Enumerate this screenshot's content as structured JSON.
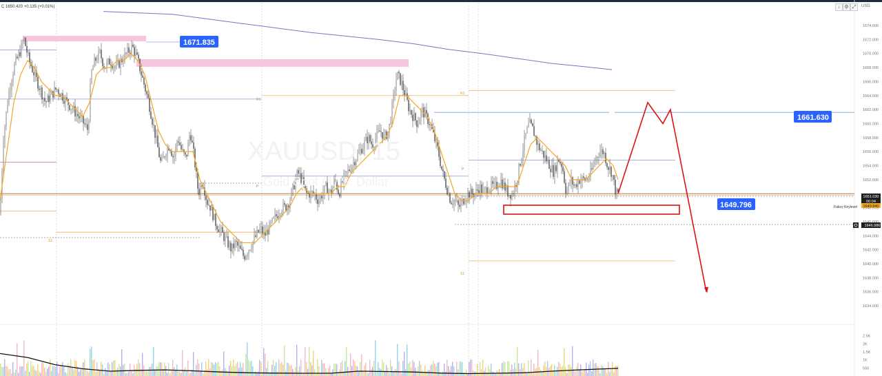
{
  "header": {
    "ohlc_text": "C 1650.420 +0.135 (+0.01%)",
    "currency": "USD"
  },
  "toolbar": {
    "icons": [
      "download-icon",
      "settings-icon",
      "fullscreen-icon"
    ]
  },
  "watermark": {
    "symbol": "XAUUSD, 15",
    "name": "Gold Spot / U.S. Dollar"
  },
  "price_axis": {
    "ticks": [
      "1674.000",
      "1672.000",
      "1670.000",
      "1668.000",
      "1666.000",
      "1664.000",
      "1662.000",
      "1660.000",
      "1658.000",
      "1656.000",
      "1654.000",
      "1652.000",
      "1648.000",
      "1646.000",
      "1644.000",
      "1642.000",
      "1640.000",
      "1638.000",
      "1636.000",
      "1634.000"
    ],
    "last_price": "1651.030",
    "countdown": "00:04",
    "fakey_price": "1649.840",
    "low_marker": "1646.986"
  },
  "volume_axis": {
    "ticks": [
      "2.5K",
      "2K",
      "1.5K",
      "1K",
      "500"
    ]
  },
  "annotations": {
    "label_high": "1671.835",
    "label_mid": "1661.630",
    "label_low": "1649.796",
    "fakey_text": "Fakey Keylevel"
  },
  "pivots": {
    "r1_a": "R1",
    "p_a": "P",
    "s1_a": "S1",
    "r1_b": "R1",
    "p_b": "P",
    "s1_b": "S1"
  },
  "colors": {
    "candle": "#555555",
    "ema": "#f5a623",
    "sma": "#7a73c7",
    "red": "#dd1111",
    "label_bg": "#2962ff",
    "pink_zone": "#f7c6dc",
    "pivot": "#f0b060"
  },
  "chart_data": {
    "type": "candlestick",
    "symbol": "XAUUSD",
    "ylim": [
      1633,
      1676
    ],
    "price_path": [
      [
        0,
        1647
      ],
      [
        5,
        1658
      ],
      [
        12,
        1664
      ],
      [
        20,
        1668
      ],
      [
        28,
        1670
      ],
      [
        35,
        1672
      ],
      [
        42,
        1669
      ],
      [
        50,
        1667
      ],
      [
        58,
        1665
      ],
      [
        66,
        1663
      ],
      [
        74,
        1664
      ],
      [
        82,
        1665
      ],
      [
        90,
        1664
      ],
      [
        98,
        1663
      ],
      [
        106,
        1662
      ],
      [
        114,
        1661
      ],
      [
        122,
        1660
      ],
      [
        128,
        1659
      ],
      [
        132,
        1667
      ],
      [
        138,
        1669
      ],
      [
        145,
        1670
      ],
      [
        152,
        1668
      ],
      [
        160,
        1669
      ],
      [
        168,
        1668
      ],
      [
        176,
        1669
      ],
      [
        184,
        1670
      ],
      [
        192,
        1671
      ],
      [
        200,
        1669
      ],
      [
        208,
        1666
      ],
      [
        216,
        1663
      ],
      [
        222,
        1660
      ],
      [
        228,
        1657
      ],
      [
        234,
        1654
      ],
      [
        240,
        1656
      ],
      [
        246,
        1657
      ],
      [
        252,
        1655
      ],
      [
        258,
        1658
      ],
      [
        264,
        1656
      ],
      [
        270,
        1655
      ],
      [
        276,
        1659
      ],
      [
        282,
        1655
      ],
      [
        288,
        1650
      ],
      [
        294,
        1652
      ],
      [
        300,
        1649
      ],
      [
        306,
        1648
      ],
      [
        312,
        1646
      ],
      [
        318,
        1645
      ],
      [
        324,
        1644
      ],
      [
        330,
        1643
      ],
      [
        336,
        1642
      ],
      [
        342,
        1643
      ],
      [
        348,
        1642
      ],
      [
        354,
        1641
      ],
      [
        360,
        1642
      ],
      [
        366,
        1643
      ],
      [
        372,
        1644
      ],
      [
        378,
        1645
      ],
      [
        384,
        1644
      ],
      [
        390,
        1645
      ],
      [
        396,
        1646
      ],
      [
        402,
        1647
      ],
      [
        408,
        1648
      ],
      [
        414,
        1648
      ],
      [
        420,
        1649
      ],
      [
        426,
        1651
      ],
      [
        432,
        1653
      ],
      [
        438,
        1652
      ],
      [
        444,
        1650
      ],
      [
        450,
        1650
      ],
      [
        456,
        1650
      ],
      [
        462,
        1649
      ],
      [
        468,
        1650
      ],
      [
        474,
        1651
      ],
      [
        480,
        1650
      ],
      [
        486,
        1652
      ],
      [
        492,
        1650
      ],
      [
        498,
        1652
      ],
      [
        504,
        1653
      ],
      [
        510,
        1654
      ],
      [
        516,
        1655
      ],
      [
        522,
        1656
      ],
      [
        528,
        1657
      ],
      [
        534,
        1658
      ],
      [
        540,
        1657
      ],
      [
        546,
        1658
      ],
      [
        552,
        1659
      ],
      [
        558,
        1658
      ],
      [
        564,
        1659
      ],
      [
        570,
        1663
      ],
      [
        576,
        1667
      ],
      [
        582,
        1666
      ],
      [
        588,
        1664
      ],
      [
        594,
        1662
      ],
      [
        600,
        1661
      ],
      [
        606,
        1660
      ],
      [
        612,
        1662
      ],
      [
        618,
        1661
      ],
      [
        624,
        1660
      ],
      [
        630,
        1658
      ],
      [
        636,
        1656
      ],
      [
        642,
        1653
      ],
      [
        648,
        1651
      ],
      [
        654,
        1649
      ],
      [
        660,
        1649
      ],
      [
        666,
        1648
      ],
      [
        672,
        1649
      ],
      [
        678,
        1650
      ],
      [
        684,
        1650
      ],
      [
        690,
        1650
      ],
      [
        696,
        1651
      ],
      [
        702,
        1650
      ],
      [
        708,
        1651
      ],
      [
        714,
        1651
      ],
      [
        720,
        1651
      ],
      [
        726,
        1652
      ],
      [
        732,
        1651
      ],
      [
        738,
        1650
      ],
      [
        744,
        1650
      ],
      [
        750,
        1652
      ],
      [
        756,
        1655
      ],
      [
        762,
        1658
      ],
      [
        768,
        1660
      ],
      [
        774,
        1659
      ],
      [
        780,
        1657
      ],
      [
        786,
        1656
      ],
      [
        792,
        1655
      ],
      [
        798,
        1654
      ],
      [
        804,
        1653
      ],
      [
        810,
        1655
      ],
      [
        816,
        1654
      ],
      [
        822,
        1650
      ],
      [
        828,
        1652
      ],
      [
        834,
        1651
      ],
      [
        840,
        1652
      ],
      [
        846,
        1652
      ],
      [
        852,
        1652
      ],
      [
        858,
        1653
      ],
      [
        864,
        1655
      ],
      [
        870,
        1656
      ],
      [
        876,
        1656
      ],
      [
        882,
        1654
      ],
      [
        888,
        1653
      ],
      [
        894,
        1650
      ],
      [
        897,
        1650
      ]
    ],
    "forecast_path": [
      [
        897,
        1650
      ],
      [
        940,
        1663
      ],
      [
        962,
        1660
      ],
      [
        973,
        1662
      ],
      [
        1025,
        1636
      ]
    ],
    "ema": [
      [
        0,
        1649
      ],
      [
        10,
        1656
      ],
      [
        20,
        1663
      ],
      [
        30,
        1667
      ],
      [
        40,
        1669
      ],
      [
        50,
        1668
      ],
      [
        60,
        1666
      ],
      [
        70,
        1665
      ],
      [
        80,
        1664
      ],
      [
        90,
        1664
      ],
      [
        100,
        1663
      ],
      [
        110,
        1662
      ],
      [
        120,
        1661
      ],
      [
        130,
        1663
      ],
      [
        140,
        1667
      ],
      [
        150,
        1668
      ],
      [
        160,
        1668
      ],
      [
        170,
        1669
      ],
      [
        180,
        1669
      ],
      [
        190,
        1670
      ],
      [
        200,
        1669
      ],
      [
        210,
        1667
      ],
      [
        220,
        1663
      ],
      [
        230,
        1659
      ],
      [
        240,
        1657
      ],
      [
        250,
        1656
      ],
      [
        260,
        1656
      ],
      [
        270,
        1656
      ],
      [
        280,
        1656
      ],
      [
        290,
        1652
      ],
      [
        300,
        1650
      ],
      [
        310,
        1648
      ],
      [
        320,
        1646
      ],
      [
        330,
        1645
      ],
      [
        340,
        1644
      ],
      [
        350,
        1643
      ],
      [
        360,
        1643
      ],
      [
        370,
        1643
      ],
      [
        380,
        1644
      ],
      [
        390,
        1645
      ],
      [
        400,
        1646
      ],
      [
        410,
        1647
      ],
      [
        420,
        1648
      ],
      [
        430,
        1650
      ],
      [
        440,
        1651
      ],
      [
        450,
        1650
      ],
      [
        460,
        1650
      ],
      [
        470,
        1650
      ],
      [
        480,
        1650
      ],
      [
        490,
        1651
      ],
      [
        500,
        1651
      ],
      [
        510,
        1653
      ],
      [
        520,
        1654
      ],
      [
        530,
        1655
      ],
      [
        540,
        1656
      ],
      [
        550,
        1657
      ],
      [
        560,
        1658
      ],
      [
        570,
        1660
      ],
      [
        580,
        1664
      ],
      [
        590,
        1664
      ],
      [
        600,
        1663
      ],
      [
        610,
        1662
      ],
      [
        620,
        1661
      ],
      [
        630,
        1659
      ],
      [
        640,
        1656
      ],
      [
        650,
        1653
      ],
      [
        660,
        1650
      ],
      [
        670,
        1649
      ],
      [
        680,
        1649
      ],
      [
        690,
        1650
      ],
      [
        700,
        1650
      ],
      [
        710,
        1650
      ],
      [
        720,
        1651
      ],
      [
        730,
        1651
      ],
      [
        740,
        1651
      ],
      [
        750,
        1651
      ],
      [
        760,
        1654
      ],
      [
        770,
        1657
      ],
      [
        780,
        1658
      ],
      [
        790,
        1657
      ],
      [
        800,
        1656
      ],
      [
        810,
        1655
      ],
      [
        820,
        1654
      ],
      [
        830,
        1652
      ],
      [
        840,
        1652
      ],
      [
        850,
        1652
      ],
      [
        860,
        1653
      ],
      [
        870,
        1654
      ],
      [
        880,
        1655
      ],
      [
        890,
        1654
      ],
      [
        897,
        1652
      ]
    ],
    "sma": [
      [
        150,
        1676
      ],
      [
        250,
        1675.6
      ],
      [
        350,
        1674.3
      ],
      [
        450,
        1673
      ],
      [
        550,
        1672
      ],
      [
        600,
        1671.4
      ],
      [
        650,
        1670.6
      ],
      [
        700,
        1670
      ],
      [
        750,
        1669.3
      ],
      [
        800,
        1668.6
      ],
      [
        850,
        1668.1
      ],
      [
        888,
        1667.7
      ]
    ],
    "levels": [
      {
        "from": 0,
        "to": 82,
        "price": 1670.5,
        "color": "#7f9fd8"
      },
      {
        "from": 0,
        "to": 82,
        "price": 1663.5,
        "color": "#7f9fd8"
      },
      {
        "from": 0,
        "to": 82,
        "price": 1654.5,
        "color": "#d27fb8"
      },
      {
        "from": 0,
        "to": 82,
        "price": 1647.5,
        "color": "#f0b060"
      },
      {
        "from": 82,
        "to": 380,
        "price": 1663.5,
        "color": "#7f9fd8"
      },
      {
        "from": 82,
        "to": 380,
        "price": 1644.5,
        "color": "#f0b060"
      },
      {
        "from": 380,
        "to": 680,
        "price": 1664.0,
        "color": "#f0b060"
      },
      {
        "from": 380,
        "to": 680,
        "price": 1652.5,
        "color": "#7f9fd8"
      },
      {
        "from": 630,
        "to": 884,
        "price": 1661.6,
        "color": "#7f9fd8"
      },
      {
        "from": 892,
        "to": 1240,
        "price": 1661.6,
        "color": "#7f9fd8"
      },
      {
        "from": 680,
        "to": 980,
        "price": 1664.7,
        "color": "#f0b060"
      },
      {
        "from": 680,
        "to": 980,
        "price": 1654.8,
        "color": "#7f9fd8"
      },
      {
        "from": 680,
        "to": 980,
        "price": 1640.4,
        "color": "#f0b060"
      },
      {
        "from": 0,
        "to": 1240,
        "price": 1649.8,
        "color": "#f0b060"
      },
      {
        "from": 0,
        "to": 1240,
        "price": 1650.0,
        "color": "#8b6a52"
      }
    ],
    "volume": {
      "ylim": [
        0,
        3000
      ],
      "avg": [
        [
          0,
          1400
        ],
        [
          40,
          1150
        ],
        [
          80,
          700
        ],
        [
          120,
          450
        ],
        [
          160,
          300
        ],
        [
          200,
          350
        ],
        [
          240,
          380
        ],
        [
          280,
          320
        ],
        [
          320,
          250
        ],
        [
          360,
          200
        ],
        [
          400,
          180
        ],
        [
          440,
          170
        ],
        [
          480,
          170
        ],
        [
          520,
          300
        ],
        [
          560,
          280
        ],
        [
          600,
          250
        ],
        [
          640,
          180
        ],
        [
          680,
          150
        ],
        [
          720,
          170
        ],
        [
          760,
          200
        ],
        [
          800,
          300
        ],
        [
          840,
          380
        ],
        [
          880,
          450
        ],
        [
          897,
          480
        ]
      ]
    }
  }
}
